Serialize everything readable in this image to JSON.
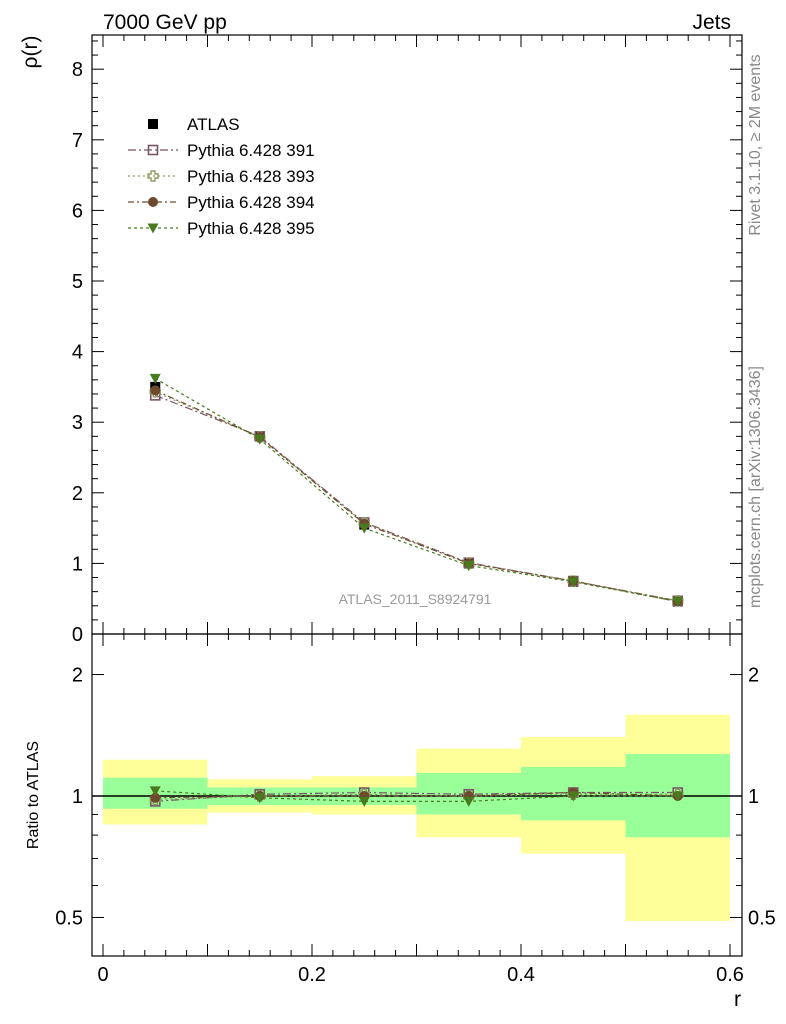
{
  "header": {
    "left_label": "7000 GeV pp",
    "right_label": "Jets"
  },
  "side_labels": {
    "top": "Rivet 3.1.10, ≥ 2M events",
    "bottom": "mcplots.cern.ch [arXiv:1306.3436]"
  },
  "watermark": "ATLAS_2011_S8924791",
  "colors": {
    "band_inner": "#99ff99",
    "band_outer": "#ffff99",
    "atlas": "#000000",
    "p391": "#7a5464",
    "p393": "#8f9b62",
    "p394": "#6e4a2e",
    "p395": "#4a7a1e"
  },
  "legend": {
    "items": [
      {
        "label": "ATLAS",
        "marker": "filled-square",
        "color": "#000000"
      },
      {
        "label": "Pythia 6.428 391",
        "marker": "open-square",
        "color": "#7a5464"
      },
      {
        "label": "Pythia 6.428 393",
        "marker": "open-cross",
        "color": "#8f9b62"
      },
      {
        "label": "Pythia 6.428 394",
        "marker": "filled-circle",
        "color": "#6e4a2e"
      },
      {
        "label": "Pythia 6.428 395",
        "marker": "filled-triangle-down",
        "color": "#4a7a1e"
      }
    ]
  },
  "chart_data": [
    {
      "type": "line",
      "panel": "main",
      "ylabel": "ρ(r)",
      "xlim": [
        0,
        0.6
      ],
      "ylim": [
        0,
        8.5
      ],
      "yticks": [
        0,
        1,
        2,
        3,
        4,
        5,
        6,
        7,
        8
      ],
      "ytick_labels": [
        "0",
        "1",
        "2",
        "3",
        "4",
        "5",
        "6",
        "7",
        "8"
      ],
      "x": [
        0.05,
        0.15,
        0.25,
        0.35,
        0.45,
        0.55
      ],
      "series": [
        {
          "name": "ATLAS",
          "values": [
            3.5,
            2.8,
            1.55,
            1.0,
            0.74,
            0.46
          ],
          "marker": "filled-square",
          "color": "#000000"
        },
        {
          "name": "Pythia 6.428 391",
          "values": [
            3.38,
            2.8,
            1.58,
            1.01,
            0.75,
            0.47
          ],
          "marker": "open-square",
          "color": "#7a5464",
          "dash": "8,3,2,3"
        },
        {
          "name": "Pythia 6.428 393",
          "values": [
            3.43,
            2.79,
            1.57,
            1.0,
            0.75,
            0.47
          ],
          "marker": "open-cross",
          "color": "#8f9b62",
          "dash": "2,3"
        },
        {
          "name": "Pythia 6.428 394",
          "values": [
            3.45,
            2.79,
            1.56,
            1.0,
            0.75,
            0.46
          ],
          "marker": "filled-circle",
          "color": "#6e4a2e",
          "dash": "6,3,2,3"
        },
        {
          "name": "Pythia 6.428 395",
          "values": [
            3.62,
            2.76,
            1.5,
            0.97,
            0.74,
            0.46
          ],
          "marker": "filled-triangle-down",
          "color": "#4a7a1e",
          "dash": "3,3"
        }
      ]
    },
    {
      "type": "line",
      "panel": "ratio",
      "ylabel": "Ratio to ATLAS",
      "xlabel": "r",
      "xlim": [
        0,
        0.6
      ],
      "ylim": [
        0.35,
        2.35
      ],
      "yticks": [
        0.5,
        1,
        2
      ],
      "ytick_labels": [
        "0.5",
        "1",
        "2"
      ],
      "xticks": [
        0,
        0.2,
        0.4,
        0.6
      ],
      "xtick_labels": [
        "0",
        "0.2",
        "0.4",
        "0.6"
      ],
      "x": [
        0.05,
        0.15,
        0.25,
        0.35,
        0.45,
        0.55
      ],
      "bins": [
        [
          0.0,
          0.1
        ],
        [
          0.1,
          0.2
        ],
        [
          0.2,
          0.3
        ],
        [
          0.3,
          0.4
        ],
        [
          0.4,
          0.5
        ],
        [
          0.5,
          0.6
        ]
      ],
      "band_inner": [
        [
          0.93,
          1.11
        ],
        [
          0.95,
          1.05
        ],
        [
          0.95,
          1.05
        ],
        [
          0.9,
          1.14
        ],
        [
          0.87,
          1.18
        ],
        [
          0.79,
          1.27
        ]
      ],
      "band_outer": [
        [
          0.85,
          1.23
        ],
        [
          0.91,
          1.1
        ],
        [
          0.9,
          1.12
        ],
        [
          0.79,
          1.31
        ],
        [
          0.72,
          1.4
        ],
        [
          0.49,
          1.59
        ]
      ],
      "series": [
        {
          "name": "Pythia 6.428 391",
          "values": [
            0.97,
            1.01,
            1.02,
            1.01,
            1.02,
            1.02
          ],
          "marker": "open-square",
          "color": "#7a5464",
          "dash": "8,3,2,3"
        },
        {
          "name": "Pythia 6.428 393",
          "values": [
            0.98,
            1.0,
            1.01,
            1.0,
            1.01,
            1.01
          ],
          "marker": "open-cross",
          "color": "#8f9b62",
          "dash": "2,3"
        },
        {
          "name": "Pythia 6.428 394",
          "values": [
            0.99,
            1.0,
            1.0,
            1.0,
            1.02,
            1.0
          ],
          "marker": "filled-circle",
          "color": "#6e4a2e",
          "dash": "6,3,2,3"
        },
        {
          "name": "Pythia 6.428 395",
          "values": [
            1.03,
            0.99,
            0.97,
            0.97,
            1.0,
            1.0
          ],
          "marker": "filled-triangle-down",
          "color": "#4a7a1e",
          "dash": "3,3"
        }
      ]
    }
  ]
}
